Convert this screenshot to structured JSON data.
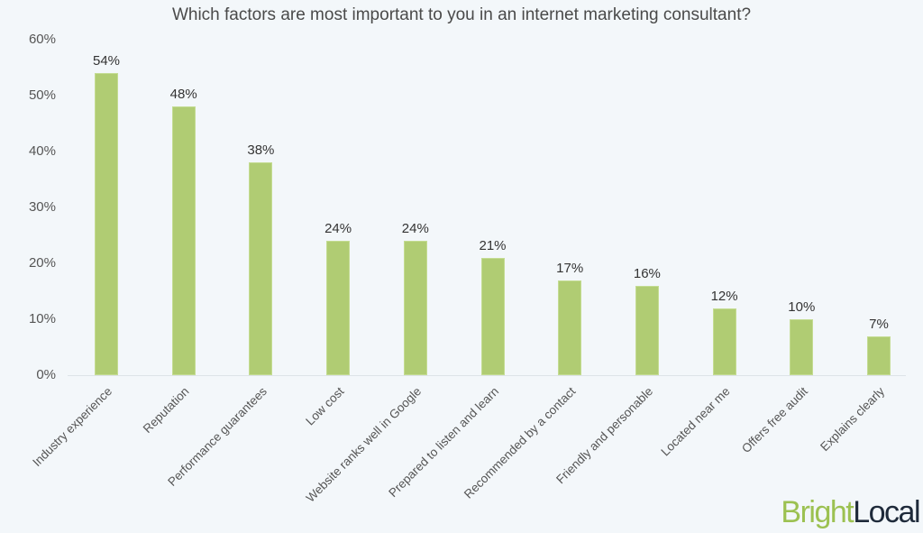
{
  "chart_data": {
    "type": "bar",
    "title": "Which factors are most important to you in an internet marketing consultant?",
    "xlabel": "",
    "ylabel": "",
    "ylim": [
      0,
      60
    ],
    "yticks": [
      "0%",
      "10%",
      "20%",
      "30%",
      "40%",
      "50%",
      "60%"
    ],
    "grid": false,
    "legend": null,
    "bar_color": "#b0cc73",
    "categories": [
      "Industry experience",
      "Reputation",
      "Performance guarantees",
      "Low cost",
      "Website ranks well in Google",
      "Prepared to listen and learn",
      "Recommended by a contact",
      "Friendly and personable",
      "Located near me",
      "Offers free audit",
      "Explains clearly"
    ],
    "values": [
      54,
      48,
      38,
      24,
      24,
      21,
      17,
      16,
      12,
      10,
      7
    ],
    "value_labels": [
      "54%",
      "48%",
      "38%",
      "24%",
      "24%",
      "21%",
      "17%",
      "16%",
      "12%",
      "10%",
      "7%"
    ]
  },
  "branding": {
    "logo_part1": "Bright",
    "logo_part2": "Local"
  }
}
